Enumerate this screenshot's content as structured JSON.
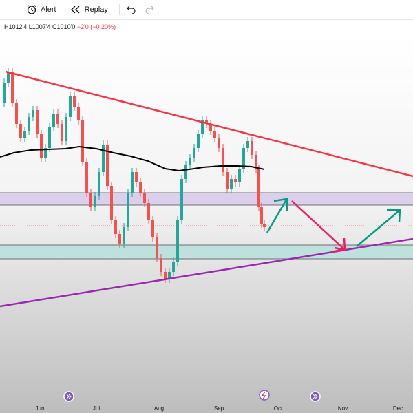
{
  "toolbar": {
    "alert_label": "Alert",
    "replay_label": "Replay",
    "undo_icon": "undo-icon",
    "redo_icon": "redo-icon"
  },
  "legend": {
    "high": "H1012'4",
    "low": "L1007'4",
    "close": "C1010'0",
    "change": "−2'0 (−0.20%)"
  },
  "chart_data": {
    "type": "candlestick",
    "x_tick_labels": [
      "Jun",
      "Jul",
      "Aug",
      "Sep",
      "Oct",
      "Nov",
      "Dec"
    ],
    "colors": {
      "up": "#26a69a",
      "down": "#ef5350",
      "moving_average": "#000000",
      "resistance_trendline": "#f23645",
      "support_trendline": "#9c27b0",
      "projection_down": "#e91e63",
      "projection_up": "#089981",
      "resistance_zone": "#d1c4e9",
      "support_zone": "#b2dfdb"
    }
  }
}
